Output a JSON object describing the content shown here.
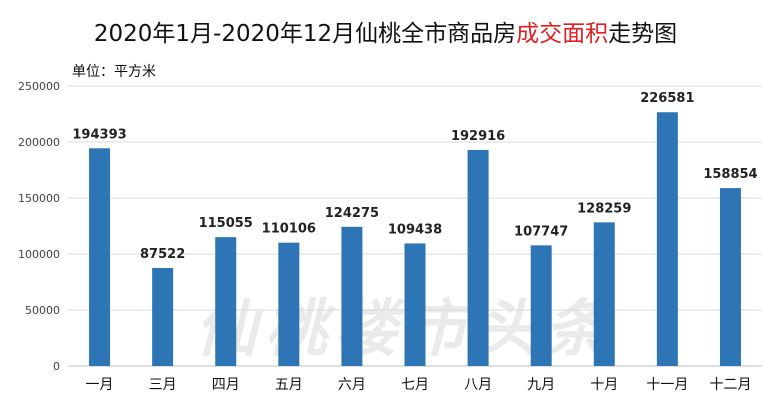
{
  "chart_data": {
    "type": "bar",
    "title_parts": [
      {
        "text": "2020年1月-2020年12月仙桃全市商品房",
        "highlight": false
      },
      {
        "text": "成交面积",
        "highlight": true
      },
      {
        "text": "走势图",
        "highlight": false
      }
    ],
    "unit_label": "单位：平方米",
    "categories": [
      "一月",
      "三月",
      "四月",
      "五月",
      "六月",
      "七月",
      "八月",
      "九月",
      "十月",
      "十一月",
      "十二月"
    ],
    "values": [
      194393,
      87522,
      115055,
      110106,
      124275,
      109438,
      192916,
      107747,
      128259,
      226581,
      158854
    ],
    "ylim": [
      0,
      250000
    ],
    "yticks": [
      0,
      50000,
      100000,
      150000,
      200000,
      250000
    ],
    "grid": true,
    "bar_color": "#2e75b6",
    "highlight_color": "#e02020",
    "watermark": "仙桃楼市头条"
  }
}
